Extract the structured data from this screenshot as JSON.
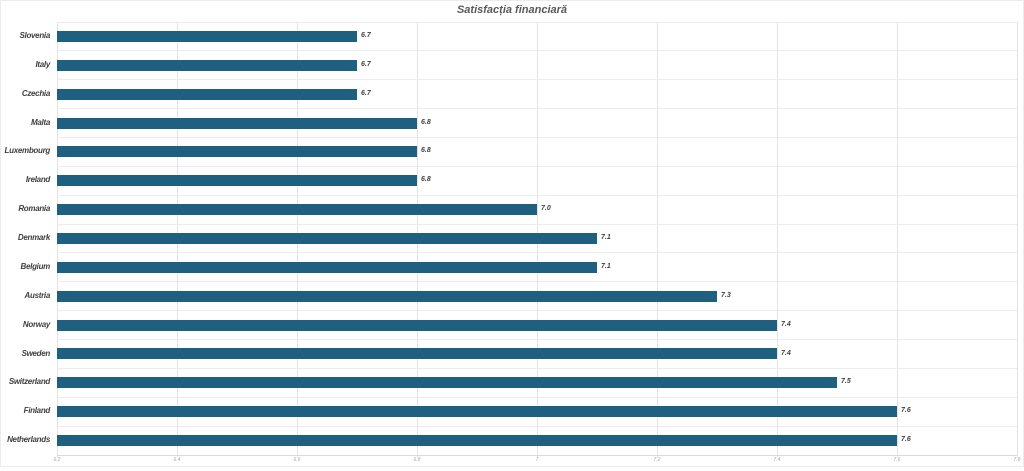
{
  "chart_data": {
    "type": "bar",
    "orientation": "horizontal",
    "title": "Satisfacția financiară",
    "categories": [
      "Slovenia",
      "Italy",
      "Czechia",
      "Malta",
      "Luxembourg",
      "Ireland",
      "Romania",
      "Denmark",
      "Belgium",
      "Austria",
      "Norway",
      "Sweden",
      "Switzerland",
      "Finland",
      "Netherlands"
    ],
    "values": [
      6.7,
      6.7,
      6.7,
      6.8,
      6.8,
      6.8,
      7.0,
      7.1,
      7.1,
      7.3,
      7.4,
      7.4,
      7.5,
      7.6,
      7.6
    ],
    "value_labels": [
      "6.7",
      "6.7",
      "6.7",
      "6.8",
      "6.8",
      "6.8",
      "7.0",
      "7.1",
      "7.1",
      "7.3",
      "7.4",
      "7.4",
      "7.5",
      "7.6",
      "7.6"
    ],
    "xlabel": "",
    "ylabel": "",
    "xlim": [
      6.2,
      7.8
    ],
    "x_ticks": [
      {
        "value": 6.2,
        "label": "6.2"
      },
      {
        "value": 6.4,
        "label": "6.4"
      },
      {
        "value": 6.6,
        "label": "6.6"
      },
      {
        "value": 6.8,
        "label": "6.8"
      },
      {
        "value": 7.0,
        "label": "7"
      },
      {
        "value": 7.2,
        "label": "7.2"
      },
      {
        "value": 7.4,
        "label": "7.4"
      },
      {
        "value": 7.6,
        "label": "7.6"
      },
      {
        "value": 7.8,
        "label": "7.8"
      }
    ],
    "legend": "none",
    "grid": "vertical ticks and horizontal row separators",
    "data_labels_shown": true
  },
  "style": {
    "bar_color": "#1f5f7f",
    "vgrid_color": "#e3e3e3",
    "hgrid_color": "#ececec",
    "axis_line_color": "#d9d9d9",
    "frame_border_color": "#ececec",
    "title_color": "#595959",
    "label_color": "#3f3f3f",
    "tick_label_color": "#a6a6a6",
    "background_color": "#ffffff"
  }
}
